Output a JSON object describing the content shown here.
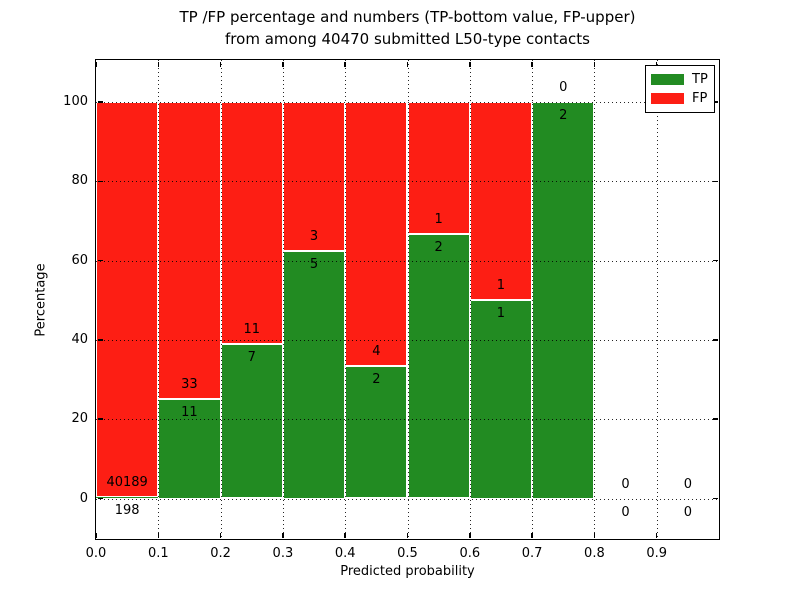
{
  "figure": {
    "title_line1": "TP /FP percentage and numbers (TP-bottom value, FP-upper)",
    "title_line2": "from among 40470 submitted L50-type contacts",
    "xlabel": "Predicted probability",
    "ylabel": "Percentage"
  },
  "legend": {
    "items": [
      {
        "label": "TP",
        "color": "#228b22"
      },
      {
        "label": "FP",
        "color": "#fd1e14"
      }
    ]
  },
  "chart_data": {
    "type": "bar",
    "stacking": "percentage",
    "title": "TP /FP percentage and numbers (TP-bottom value, FP-upper) from among 40470 submitted L50-type contacts",
    "xlabel": "Predicted probability",
    "ylabel": "Percentage",
    "total_submitted_contacts": 40470,
    "xlim": [
      0.0,
      1.0
    ],
    "ylim": [
      0,
      100
    ],
    "bin_width": 0.1,
    "categories": [
      0.0,
      0.1,
      0.2,
      0.3,
      0.4,
      0.5,
      0.6,
      0.7,
      0.8,
      0.9
    ],
    "x_tick_labels": [
      "0.0",
      "0.1",
      "0.2",
      "0.3",
      "0.4",
      "0.5",
      "0.6",
      "0.7",
      "0.8",
      "0.9"
    ],
    "y_ticks": [
      0,
      20,
      40,
      60,
      80,
      100
    ],
    "y_tick_labels": [
      "0",
      "20",
      "40",
      "60",
      "80",
      "100"
    ],
    "series": [
      {
        "name": "TP",
        "color": "#228b22",
        "values": [
          198,
          11,
          7,
          5,
          2,
          2,
          1,
          2,
          0,
          0
        ]
      },
      {
        "name": "FP",
        "color": "#fd1e14",
        "values": [
          40189,
          33,
          11,
          3,
          4,
          1,
          1,
          0,
          0,
          0
        ]
      }
    ],
    "tp_percent": [
      0.49,
      25.0,
      38.89,
      62.5,
      33.33,
      66.67,
      50.0,
      100.0,
      null,
      null
    ],
    "grid": "dotted",
    "legend_position": "upper right"
  }
}
